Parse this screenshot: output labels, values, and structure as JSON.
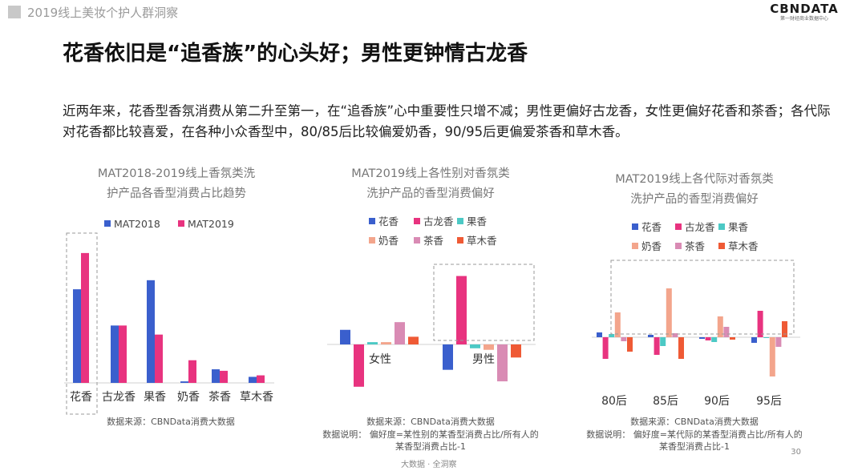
{
  "header": {
    "title": "2019线上美妆个护人群洞察"
  },
  "logo": {
    "name": "CBNDATA",
    "tagline": "第一财经商业数据中心"
  },
  "headline": "花香依旧是“追香族”的心头好；男性更钟情古龙香",
  "paragraph": "近两年来，花香型香氛消费从第二升至第一，在“追香族”心中重要性只增不减；男性更偏好古龙香，女性更偏好花香和茶香；各代际对花香都比较喜爱，在各种小众香型中，80/85后比较偏爱奶香，90/95后更偏爱茶香和草木香。",
  "page_number": "30",
  "footer": "大数据 · 全洞察",
  "colors": {
    "blue": "#3a5fcd",
    "magenta": "#e8337f",
    "teal": "#4cc9c5",
    "salmon": "#f3a58c",
    "pink": "#d98bb4",
    "orange": "#ef5a35"
  },
  "chart_data": [
    {
      "type": "bar",
      "title_lines": [
        "MAT2018-2019线上香氛类洗",
        "护产品各香型消费占比趋势"
      ],
      "categories": [
        "花香",
        "古龙香",
        "果香",
        "奶香",
        "茶香",
        "草木香"
      ],
      "series": [
        {
          "name": "MAT2018",
          "color": "#3a5fcd",
          "values": [
            0.31,
            0.19,
            0.34,
            0.005,
            0.045,
            0.02
          ]
        },
        {
          "name": "MAT2019",
          "color": "#e8337f",
          "values": [
            0.43,
            0.19,
            0.16,
            0.075,
            0.04,
            0.025
          ]
        }
      ],
      "highlight": "花香",
      "source": "数据来源：CBNData消费大数据"
    },
    {
      "type": "bar",
      "title_lines": [
        "MAT2019线上各性别对香氛类",
        "洗护产品的香型消费偏好"
      ],
      "categories": [
        "女性",
        "男性"
      ],
      "series": [
        {
          "name": "花香",
          "color": "#3a5fcd",
          "values": [
            0.19,
            -0.33
          ]
        },
        {
          "name": "古龙香",
          "color": "#e8337f",
          "values": [
            -0.55,
            0.89
          ]
        },
        {
          "name": "果香",
          "color": "#4cc9c5",
          "values": [
            0.03,
            -0.05
          ]
        },
        {
          "name": "奶香",
          "color": "#f3a58c",
          "values": [
            0.03,
            -0.07
          ]
        },
        {
          "name": "茶香",
          "color": "#d98bb4",
          "values": [
            0.29,
            -0.48
          ]
        },
        {
          "name": "草木香",
          "color": "#ef5a35",
          "values": [
            0.1,
            -0.17
          ]
        }
      ],
      "highlight": "男性",
      "source": "数据来源：CBNData消费大数据",
      "note": "数据说明： 偏好度=某性别的某香型消费占比/所有人的某香型消费占比-1"
    },
    {
      "type": "bar",
      "title_lines": [
        "MAT2019线上各代际对香氛类",
        "洗护产品的香型消费偏好"
      ],
      "categories": [
        "80后",
        "85后",
        "90后",
        "95后"
      ],
      "series": [
        {
          "name": "花香",
          "color": "#3a5fcd",
          "values": [
            0.06,
            0.03,
            -0.02,
            -0.07
          ]
        },
        {
          "name": "古龙香",
          "color": "#e8337f",
          "values": [
            -0.27,
            -0.22,
            -0.04,
            0.33
          ]
        },
        {
          "name": "果香",
          "color": "#4cc9c5",
          "values": [
            0.04,
            -0.11,
            -0.06,
            0.0
          ]
        },
        {
          "name": "奶香",
          "color": "#f3a58c",
          "values": [
            0.31,
            0.61,
            0.26,
            -0.49
          ]
        },
        {
          "name": "茶香",
          "color": "#d98bb4",
          "values": [
            -0.05,
            0.05,
            0.13,
            -0.12
          ]
        },
        {
          "name": "草木香",
          "color": "#ef5a35",
          "values": [
            -0.18,
            -0.27,
            -0.03,
            0.2
          ]
        }
      ],
      "highlight": "奶香",
      "source": "数据来源：CBNData消费大数据",
      "note": "数据说明： 偏好度=某代际的某香型消费占比/所有人的某香型消费占比-1"
    }
  ]
}
